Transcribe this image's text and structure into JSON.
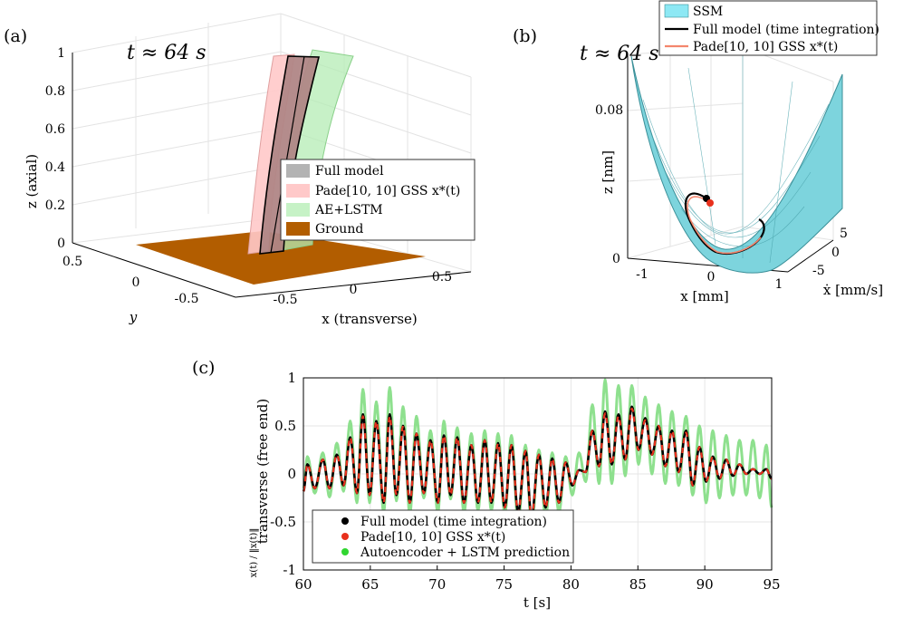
{
  "panels": {
    "a": {
      "tag": "(a)",
      "time_label": "t ≈ 64 s",
      "xlabel": "x (transverse)",
      "ylabel": "y",
      "zlabel": "z (axial)",
      "z_ticks": [
        "0",
        "0.2",
        "0.4",
        "0.6",
        "0.8",
        "1"
      ],
      "x_ticks": [
        "-0.5",
        "0",
        "0.5"
      ],
      "y_ticks": [
        "0.5",
        "0",
        "-0.5"
      ],
      "legend": [
        {
          "label": "Full model",
          "color": "#b3b3b3"
        },
        {
          "label": "Pade[10, 10] GSS x*(t)",
          "color": "#ffc9c9"
        },
        {
          "label": "AE+LSTM",
          "color": "#c6f2c6"
        },
        {
          "label": "Ground",
          "color": "#b25d00"
        }
      ]
    },
    "b": {
      "tag": "(b)",
      "time_label": "t ≈ 64 s",
      "xlabel": "x [mm]",
      "ylabel": "ẋ [mm/s]",
      "zlabel": "z [nm]",
      "z_ticks": [
        "0",
        "0.08"
      ],
      "x_ticks": [
        "-1",
        "0",
        "1"
      ],
      "y_ticks": [
        "5",
        "0",
        "-5"
      ],
      "legend": [
        {
          "label": "SSM",
          "color": "#8de8f4"
        },
        {
          "label": "Full model (time integration)",
          "color": "#000000"
        },
        {
          "label": "Pade[10, 10] GSS x*(t)",
          "color": "#f4866d"
        }
      ]
    },
    "c": {
      "tag": "(c)"
    }
  },
  "chart_data": [
    {
      "type": "line",
      "panel": "c",
      "xlabel": "t [s]",
      "ylabel": "transverse (free end)",
      "ylabel_fraction": "x(t) / ‖x(t)‖",
      "xlim": [
        60,
        95
      ],
      "ylim": [
        -1,
        1
      ],
      "x_ticks": [
        60,
        65,
        70,
        75,
        80,
        85,
        90,
        95
      ],
      "y_ticks": [
        -1,
        -0.5,
        0,
        0.5,
        1
      ],
      "grid": true,
      "legend_position": "bottom-left",
      "series": [
        {
          "name": "Autoencoder + LSTM prediction",
          "color": "#8ee08e",
          "peaks": [
            [
              60.0,
              -0.15
            ],
            [
              60.3,
              0.18
            ],
            [
              60.85,
              -0.2
            ],
            [
              61.45,
              0.22
            ],
            [
              61.95,
              -0.24
            ],
            [
              62.5,
              0.32
            ],
            [
              63.0,
              -0.18
            ],
            [
              63.5,
              0.55
            ],
            [
              64.0,
              -0.3
            ],
            [
              64.45,
              0.88
            ],
            [
              64.95,
              -0.3
            ],
            [
              65.45,
              0.75
            ],
            [
              66.0,
              -0.4
            ],
            [
              66.45,
              0.9
            ],
            [
              66.95,
              -0.28
            ],
            [
              67.45,
              0.7
            ],
            [
              67.95,
              -0.42
            ],
            [
              68.45,
              0.6
            ],
            [
              69.0,
              -0.25
            ],
            [
              69.5,
              0.45
            ],
            [
              70.05,
              -0.4
            ],
            [
              70.5,
              0.55
            ],
            [
              71.0,
              -0.26
            ],
            [
              71.5,
              0.48
            ],
            [
              72.0,
              -0.4
            ],
            [
              72.55,
              0.42
            ],
            [
              73.05,
              -0.38
            ],
            [
              73.55,
              0.45
            ],
            [
              74.05,
              -0.38
            ],
            [
              74.55,
              0.42
            ],
            [
              75.05,
              -0.42
            ],
            [
              75.55,
              0.4
            ],
            [
              76.05,
              -0.5
            ],
            [
              76.6,
              0.3
            ],
            [
              77.05,
              -0.55
            ],
            [
              77.6,
              0.25
            ],
            [
              78.1,
              -0.45
            ],
            [
              78.6,
              0.22
            ],
            [
              79.1,
              -0.4
            ],
            [
              79.6,
              0.18
            ],
            [
              80.1,
              -0.22
            ],
            [
              80.6,
              0.22
            ],
            [
              81.1,
              -0.08
            ],
            [
              81.6,
              0.72
            ],
            [
              82.1,
              -0.1
            ],
            [
              82.55,
              0.98
            ],
            [
              83.05,
              -0.1
            ],
            [
              83.55,
              0.92
            ],
            [
              84.05,
              -0.02
            ],
            [
              84.55,
              0.92
            ],
            [
              85.05,
              0.1
            ],
            [
              85.55,
              0.8
            ],
            [
              86.05,
              0.0
            ],
            [
              86.55,
              0.72
            ],
            [
              87.05,
              -0.1
            ],
            [
              87.55,
              0.65
            ],
            [
              88.05,
              -0.12
            ],
            [
              88.6,
              0.6
            ],
            [
              89.1,
              -0.22
            ],
            [
              89.6,
              0.5
            ],
            [
              90.1,
              -0.3
            ],
            [
              90.6,
              0.45
            ],
            [
              91.1,
              -0.25
            ],
            [
              91.6,
              0.4
            ],
            [
              92.1,
              -0.22
            ],
            [
              92.6,
              0.35
            ],
            [
              93.1,
              -0.22
            ],
            [
              93.6,
              0.35
            ],
            [
              94.1,
              -0.25
            ],
            [
              94.6,
              0.3
            ],
            [
              95.0,
              -0.35
            ]
          ]
        },
        {
          "name": "Full model (time integration)",
          "color": "#000000",
          "peaks": [
            [
              60.0,
              -0.18
            ],
            [
              60.3,
              0.1
            ],
            [
              60.85,
              -0.15
            ],
            [
              61.45,
              0.15
            ],
            [
              61.95,
              -0.15
            ],
            [
              62.5,
              0.2
            ],
            [
              63.0,
              -0.12
            ],
            [
              63.5,
              0.38
            ],
            [
              64.0,
              -0.2
            ],
            [
              64.45,
              0.62
            ],
            [
              64.95,
              -0.22
            ],
            [
              65.45,
              0.55
            ],
            [
              66.0,
              -0.3
            ],
            [
              66.45,
              0.62
            ],
            [
              66.95,
              -0.22
            ],
            [
              67.45,
              0.5
            ],
            [
              67.95,
              -0.3
            ],
            [
              68.45,
              0.42
            ],
            [
              69.0,
              -0.2
            ],
            [
              69.5,
              0.35
            ],
            [
              70.05,
              -0.3
            ],
            [
              70.5,
              0.4
            ],
            [
              71.0,
              -0.22
            ],
            [
              71.5,
              0.38
            ],
            [
              72.0,
              -0.3
            ],
            [
              72.55,
              0.3
            ],
            [
              73.05,
              -0.3
            ],
            [
              73.55,
              0.35
            ],
            [
              74.05,
              -0.3
            ],
            [
              74.55,
              0.32
            ],
            [
              75.05,
              -0.35
            ],
            [
              75.55,
              0.3
            ],
            [
              76.05,
              -0.4
            ],
            [
              76.6,
              0.24
            ],
            [
              77.05,
              -0.45
            ],
            [
              77.6,
              0.2
            ],
            [
              78.1,
              -0.35
            ],
            [
              78.6,
              0.16
            ],
            [
              79.1,
              -0.3
            ],
            [
              79.6,
              0.12
            ],
            [
              80.1,
              -0.12
            ],
            [
              80.6,
              0.04
            ],
            [
              81.1,
              0.02
            ],
            [
              81.6,
              0.45
            ],
            [
              82.1,
              0.08
            ],
            [
              82.55,
              0.65
            ],
            [
              83.05,
              0.1
            ],
            [
              83.55,
              0.62
            ],
            [
              84.05,
              0.15
            ],
            [
              84.55,
              0.7
            ],
            [
              85.05,
              0.25
            ],
            [
              85.55,
              0.58
            ],
            [
              86.05,
              0.2
            ],
            [
              86.55,
              0.5
            ],
            [
              87.05,
              0.08
            ],
            [
              87.55,
              0.45
            ],
            [
              88.05,
              0.02
            ],
            [
              88.6,
              0.45
            ],
            [
              89.1,
              -0.12
            ],
            [
              89.6,
              0.28
            ],
            [
              90.1,
              -0.08
            ],
            [
              90.6,
              0.18
            ],
            [
              91.1,
              -0.05
            ],
            [
              91.6,
              0.15
            ],
            [
              92.1,
              -0.02
            ],
            [
              92.6,
              0.1
            ],
            [
              93.1,
              0.0
            ],
            [
              93.6,
              0.05
            ],
            [
              94.1,
              0.0
            ],
            [
              94.6,
              0.05
            ],
            [
              95.0,
              -0.05
            ]
          ]
        },
        {
          "name": "Pade[10, 10] GSS x*(t)",
          "color": "#e8301c",
          "dashed": true,
          "peaks": [
            [
              60.0,
              -0.18
            ],
            [
              60.3,
              0.1
            ],
            [
              60.85,
              -0.15
            ],
            [
              61.45,
              0.15
            ],
            [
              61.95,
              -0.15
            ],
            [
              62.5,
              0.2
            ],
            [
              63.0,
              -0.12
            ],
            [
              63.5,
              0.38
            ],
            [
              64.0,
              -0.2
            ],
            [
              64.45,
              0.6
            ],
            [
              64.95,
              -0.22
            ],
            [
              65.45,
              0.55
            ],
            [
              66.0,
              -0.3
            ],
            [
              66.45,
              0.6
            ],
            [
              66.95,
              -0.22
            ],
            [
              67.45,
              0.5
            ],
            [
              67.95,
              -0.3
            ],
            [
              68.45,
              0.42
            ],
            [
              69.0,
              -0.2
            ],
            [
              69.5,
              0.35
            ],
            [
              70.05,
              -0.3
            ],
            [
              70.5,
              0.4
            ],
            [
              71.0,
              -0.22
            ],
            [
              71.5,
              0.38
            ],
            [
              72.0,
              -0.3
            ],
            [
              72.55,
              0.3
            ],
            [
              73.05,
              -0.3
            ],
            [
              73.55,
              0.35
            ],
            [
              74.05,
              -0.3
            ],
            [
              74.55,
              0.32
            ],
            [
              75.05,
              -0.35
            ],
            [
              75.55,
              0.3
            ],
            [
              76.05,
              -0.4
            ],
            [
              76.6,
              0.24
            ],
            [
              77.05,
              -0.45
            ],
            [
              77.6,
              0.2
            ],
            [
              78.1,
              -0.35
            ],
            [
              78.6,
              0.16
            ],
            [
              79.1,
              -0.3
            ],
            [
              79.6,
              0.12
            ],
            [
              80.1,
              -0.12
            ],
            [
              80.6,
              0.04
            ],
            [
              81.1,
              0.02
            ],
            [
              81.6,
              0.45
            ],
            [
              82.1,
              0.08
            ],
            [
              82.55,
              0.63
            ],
            [
              83.05,
              0.1
            ],
            [
              83.55,
              0.6
            ],
            [
              84.05,
              0.15
            ],
            [
              84.55,
              0.68
            ],
            [
              85.05,
              0.25
            ],
            [
              85.55,
              0.56
            ],
            [
              86.05,
              0.2
            ],
            [
              86.55,
              0.5
            ],
            [
              87.05,
              0.08
            ],
            [
              87.55,
              0.45
            ],
            [
              88.05,
              0.02
            ],
            [
              88.6,
              0.43
            ],
            [
              89.1,
              -0.12
            ],
            [
              89.6,
              0.28
            ],
            [
              90.1,
              -0.08
            ],
            [
              90.6,
              0.18
            ],
            [
              91.1,
              -0.05
            ],
            [
              91.6,
              0.15
            ],
            [
              92.1,
              -0.02
            ],
            [
              92.6,
              0.1
            ],
            [
              93.1,
              0.0
            ],
            [
              93.6,
              0.05
            ],
            [
              94.1,
              0.0
            ],
            [
              94.6,
              0.05
            ],
            [
              95.0,
              -0.05
            ]
          ]
        }
      ]
    }
  ]
}
